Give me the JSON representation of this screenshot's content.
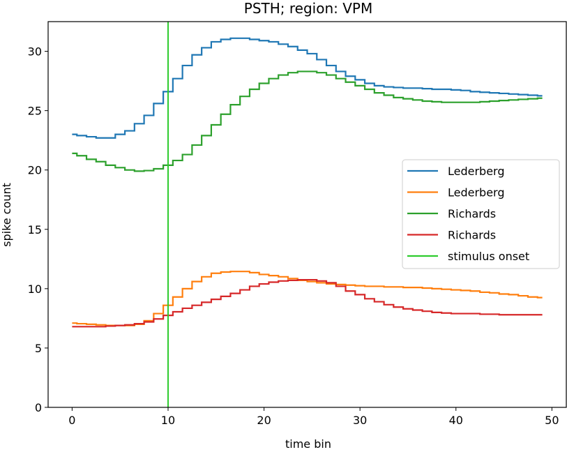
{
  "chart_data": {
    "type": "line",
    "drawstyle": "steps-mid",
    "title": "PSTH; region: VPM",
    "xlabel": "time bin",
    "ylabel": "spike count",
    "xlim": [
      -2.5,
      51.5
    ],
    "ylim": [
      0,
      32.5
    ],
    "xticks": [
      0,
      10,
      20,
      30,
      40,
      50
    ],
    "yticks": [
      0,
      5,
      10,
      15,
      20,
      25,
      30
    ],
    "grid": false,
    "legend_position": "center-right",
    "x": [
      0,
      1,
      2,
      3,
      4,
      5,
      6,
      7,
      8,
      9,
      10,
      11,
      12,
      13,
      14,
      15,
      16,
      17,
      18,
      19,
      20,
      21,
      22,
      23,
      24,
      25,
      26,
      27,
      28,
      29,
      30,
      31,
      32,
      33,
      34,
      35,
      36,
      37,
      38,
      39,
      40,
      41,
      42,
      43,
      44,
      45,
      46,
      47,
      48,
      49
    ],
    "series": [
      {
        "name": "Lederberg",
        "color": "#1f77b4",
        "values": [
          23.0,
          22.9,
          22.8,
          22.7,
          22.7,
          23.0,
          23.3,
          23.9,
          24.6,
          25.6,
          26.6,
          27.7,
          28.8,
          29.7,
          30.3,
          30.8,
          31.0,
          31.1,
          31.1,
          31.0,
          30.9,
          30.8,
          30.6,
          30.4,
          30.1,
          29.8,
          29.3,
          28.8,
          28.3,
          27.9,
          27.6,
          27.3,
          27.1,
          27.0,
          26.95,
          26.9,
          26.9,
          26.85,
          26.8,
          26.8,
          26.75,
          26.7,
          26.6,
          26.55,
          26.5,
          26.45,
          26.4,
          26.35,
          26.3,
          26.25
        ]
      },
      {
        "name": "Lederberg",
        "color": "#ff7f0e",
        "values": [
          7.1,
          7.05,
          7.0,
          6.95,
          6.9,
          6.9,
          6.9,
          7.0,
          7.3,
          7.9,
          8.6,
          9.3,
          10.0,
          10.6,
          11.0,
          11.3,
          11.4,
          11.45,
          11.45,
          11.35,
          11.2,
          11.1,
          11.0,
          10.85,
          10.7,
          10.6,
          10.5,
          10.4,
          10.35,
          10.3,
          10.25,
          10.2,
          10.2,
          10.15,
          10.15,
          10.1,
          10.1,
          10.05,
          10.0,
          9.95,
          9.9,
          9.85,
          9.8,
          9.7,
          9.65,
          9.55,
          9.5,
          9.4,
          9.3,
          9.25
        ]
      },
      {
        "name": "Richards",
        "color": "#2ca02c",
        "values": [
          21.4,
          21.2,
          20.9,
          20.7,
          20.4,
          20.2,
          20.0,
          19.9,
          19.95,
          20.1,
          20.4,
          20.8,
          21.3,
          22.1,
          22.9,
          23.8,
          24.7,
          25.5,
          26.2,
          26.8,
          27.3,
          27.7,
          28.0,
          28.2,
          28.3,
          28.3,
          28.2,
          28.0,
          27.7,
          27.4,
          27.1,
          26.8,
          26.5,
          26.3,
          26.1,
          26.0,
          25.9,
          25.8,
          25.75,
          25.7,
          25.7,
          25.7,
          25.7,
          25.75,
          25.8,
          25.85,
          25.9,
          25.95,
          26.0,
          26.05
        ]
      },
      {
        "name": "Richards",
        "color": "#d62728",
        "values": [
          6.8,
          6.8,
          6.8,
          6.8,
          6.85,
          6.9,
          6.95,
          7.05,
          7.2,
          7.45,
          7.75,
          8.05,
          8.35,
          8.6,
          8.85,
          9.1,
          9.35,
          9.6,
          9.9,
          10.2,
          10.4,
          10.55,
          10.65,
          10.7,
          10.75,
          10.75,
          10.65,
          10.5,
          10.2,
          9.8,
          9.5,
          9.15,
          8.9,
          8.65,
          8.45,
          8.3,
          8.2,
          8.1,
          8.0,
          7.95,
          7.9,
          7.9,
          7.9,
          7.85,
          7.85,
          7.8,
          7.8,
          7.8,
          7.8,
          7.8
        ]
      }
    ],
    "vline": {
      "name": "stimulus onset",
      "x": 10,
      "color": "#2ecc2e"
    }
  }
}
